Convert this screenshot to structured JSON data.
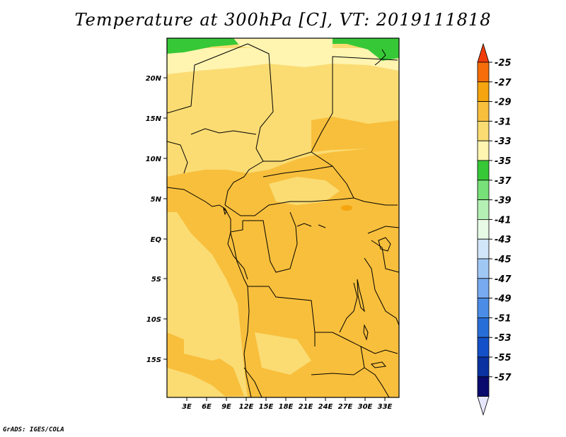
{
  "title": "Temperature at 300hPa [C], VT: 2019111818",
  "footer": "GrADS: IGES/COLA",
  "map": {
    "lat_labels": [
      "20N",
      "15N",
      "10N",
      "5N",
      "EQ",
      "5S",
      "10S",
      "15S"
    ],
    "lon_labels": [
      "3E",
      "6E",
      "9E",
      "12E",
      "15E",
      "18E",
      "21E",
      "24E",
      "27E",
      "30E",
      "33E"
    ]
  },
  "colorbar": {
    "labels": [
      "-25",
      "-27",
      "-29",
      "-31",
      "-33",
      "-35",
      "-37",
      "-39",
      "-41",
      "-43",
      "-45",
      "-47",
      "-49",
      "-51",
      "-53",
      "-55",
      "-57"
    ],
    "colors": [
      "#f03c0a",
      "#f56e0a",
      "#f5a50f",
      "#f8bf3c",
      "#fadc73",
      "#fff4b0",
      "#37c837",
      "#78e078",
      "#b4f0b4",
      "#e6fae6",
      "#d2e6fa",
      "#a0c8f5",
      "#78aaf0",
      "#4b8ce6",
      "#286ed7",
      "#1450c8",
      "#0a32a0",
      "#0a0a6e",
      "#e6e6ff"
    ]
  }
}
